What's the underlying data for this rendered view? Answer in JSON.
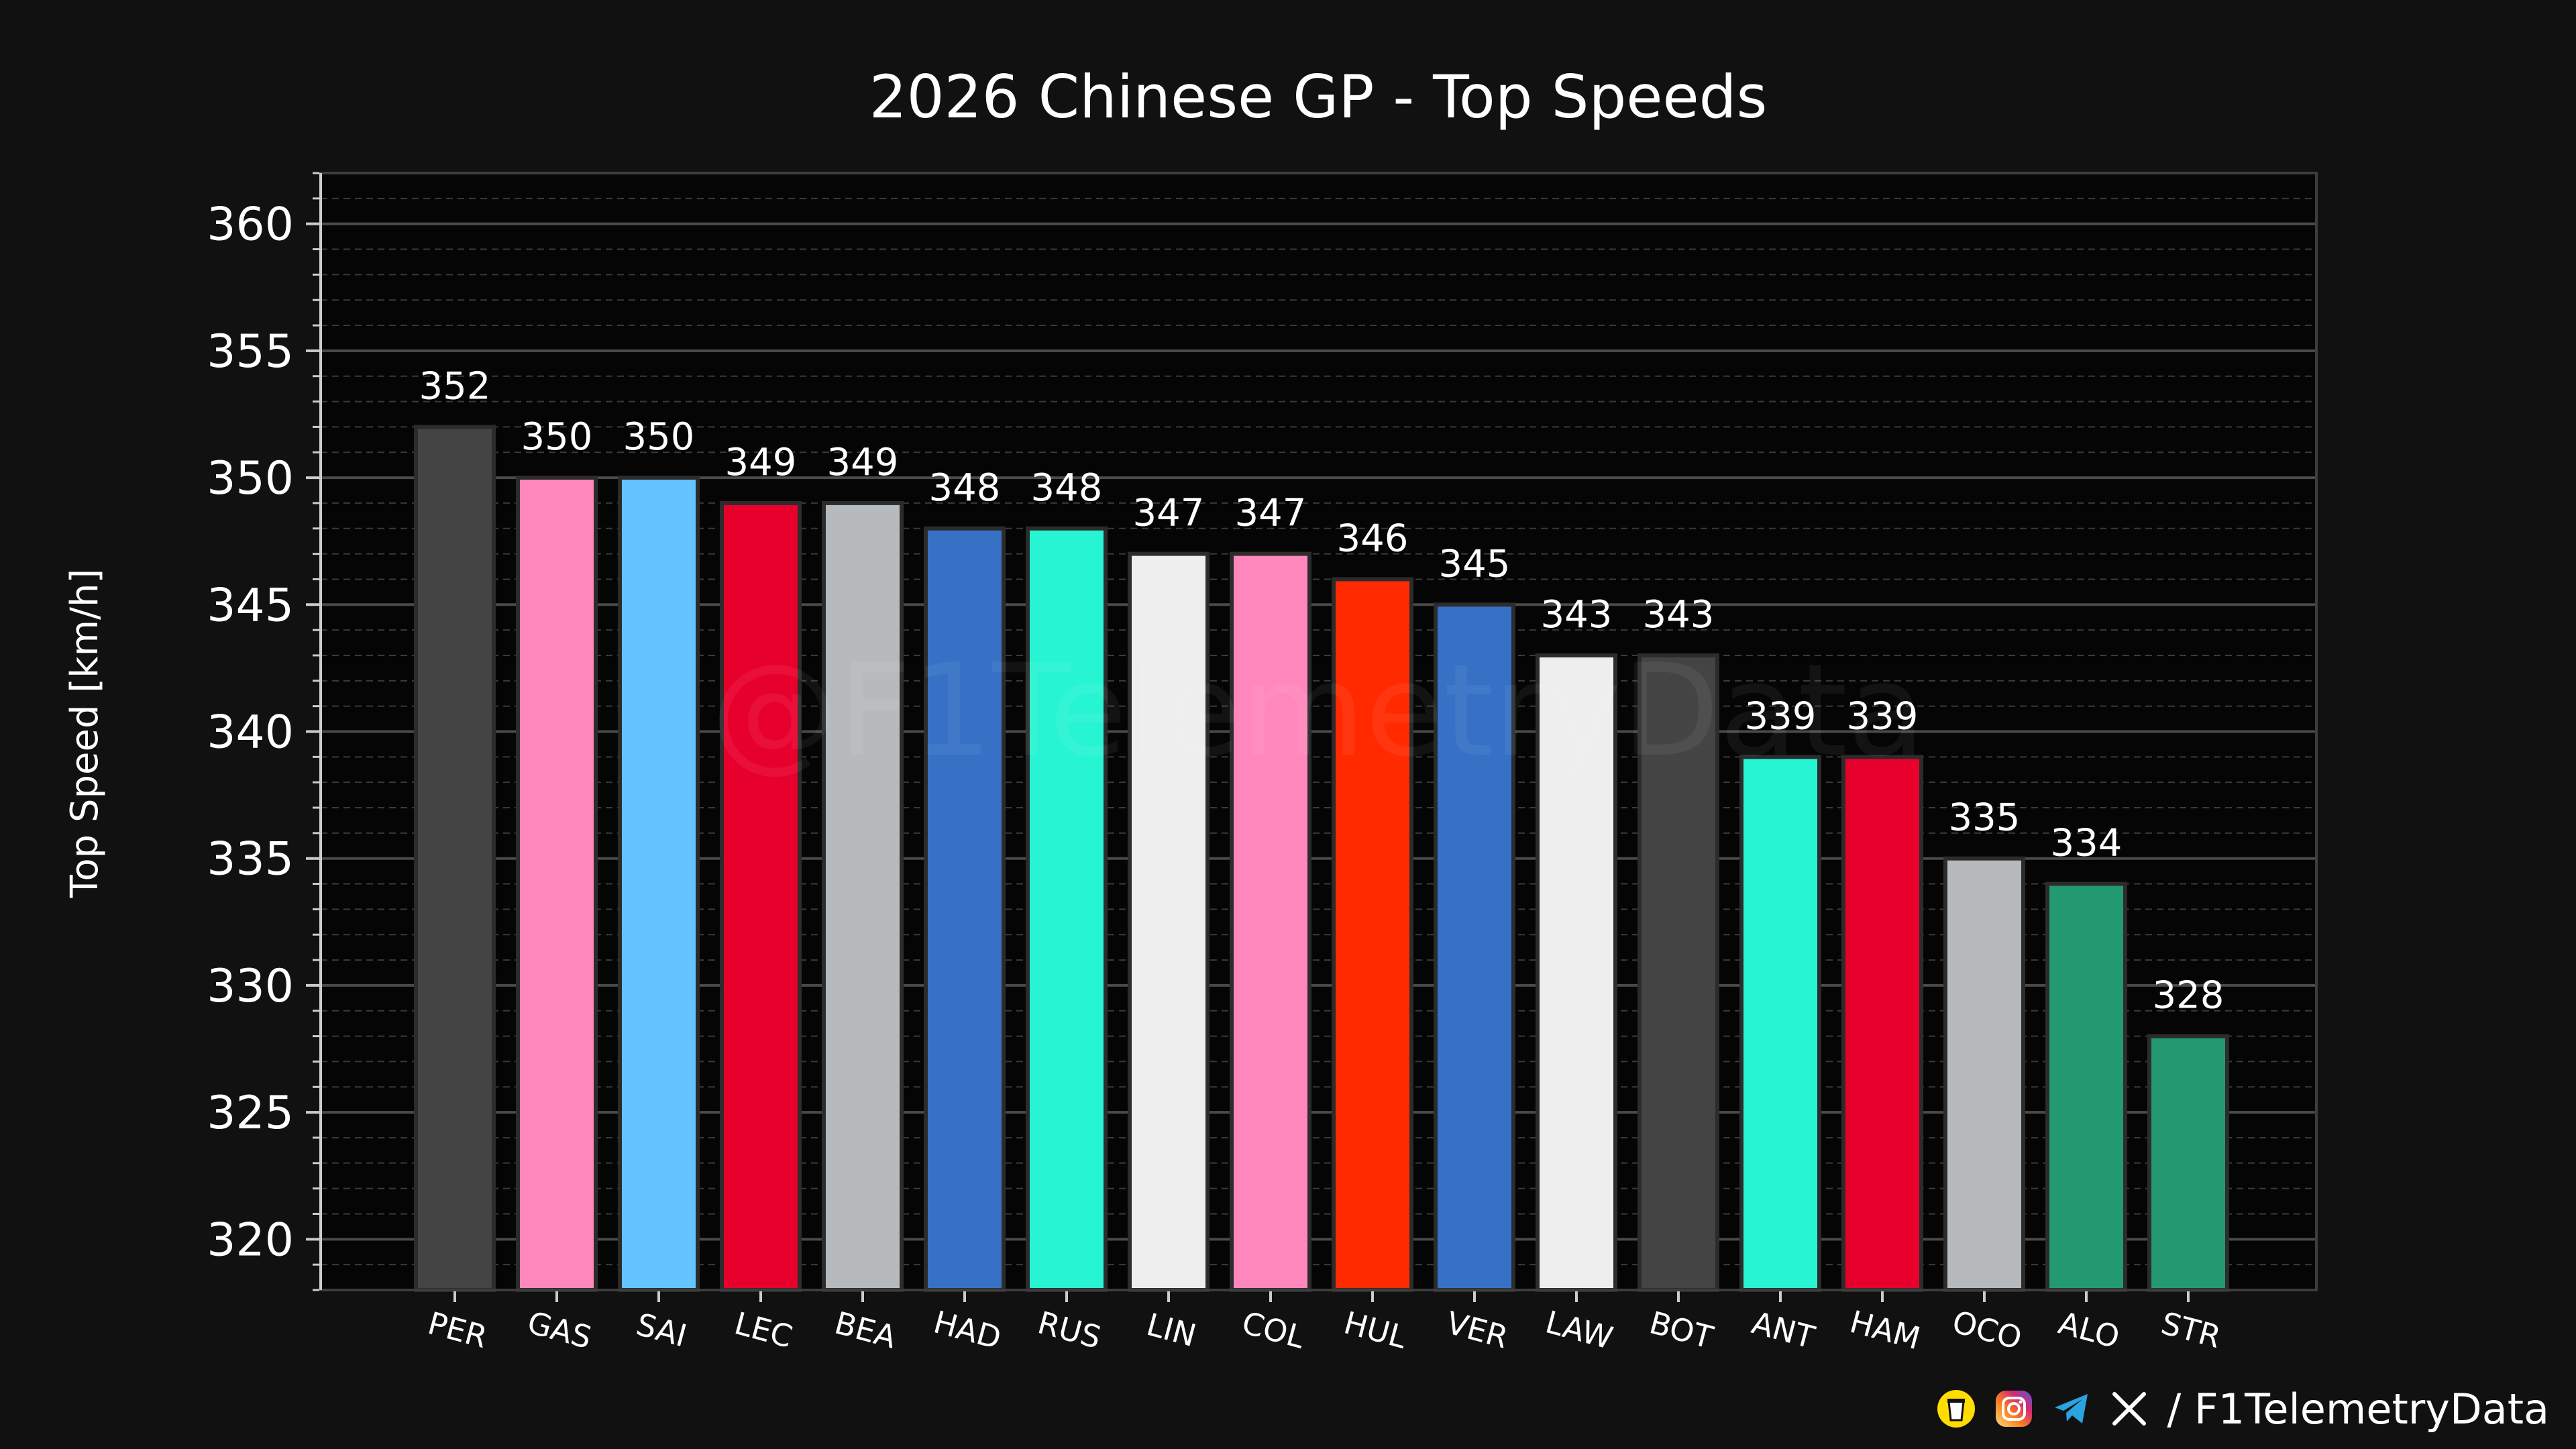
{
  "chart_data": {
    "type": "bar",
    "title": "2026 Chinese GP - Top Speeds",
    "xlabel": "",
    "ylabel": "Top Speed [km/h]",
    "ylim": [
      318,
      362
    ],
    "yticks": [
      320,
      325,
      330,
      335,
      340,
      345,
      350,
      355,
      360
    ],
    "grid": true,
    "categories": [
      "PER",
      "GAS",
      "SAI",
      "LEC",
      "BEA",
      "HAD",
      "RUS",
      "LIN",
      "COL",
      "HUL",
      "VER",
      "LAW",
      "BOT",
      "ANT",
      "HAM",
      "OCO",
      "ALO",
      "STR"
    ],
    "values": [
      352,
      350,
      350,
      349,
      349,
      348,
      348,
      347,
      347,
      346,
      345,
      343,
      343,
      339,
      339,
      335,
      334,
      328
    ],
    "colors": [
      "#444444",
      "#ff87bc",
      "#64c4ff",
      "#e8002d",
      "#b6babd",
      "#3671c6",
      "#27f4d2",
      "#eeeeee",
      "#ff87bc",
      "#ff2a00",
      "#3671c6",
      "#eeeeee",
      "#444444",
      "#27f4d2",
      "#e8002d",
      "#b6babd",
      "#229971",
      "#229971"
    ]
  },
  "watermark": "@F1TelemetryData",
  "footer": {
    "handle": "/ F1TelemetryData",
    "icons": [
      "coffee-icon",
      "instagram-icon",
      "telegram-icon",
      "x-icon"
    ],
    "icon_colors": {
      "coffee": "#ffdd00",
      "instagram": "#e1306c",
      "telegram": "#2aa3e0",
      "x": "#ffffff"
    }
  }
}
